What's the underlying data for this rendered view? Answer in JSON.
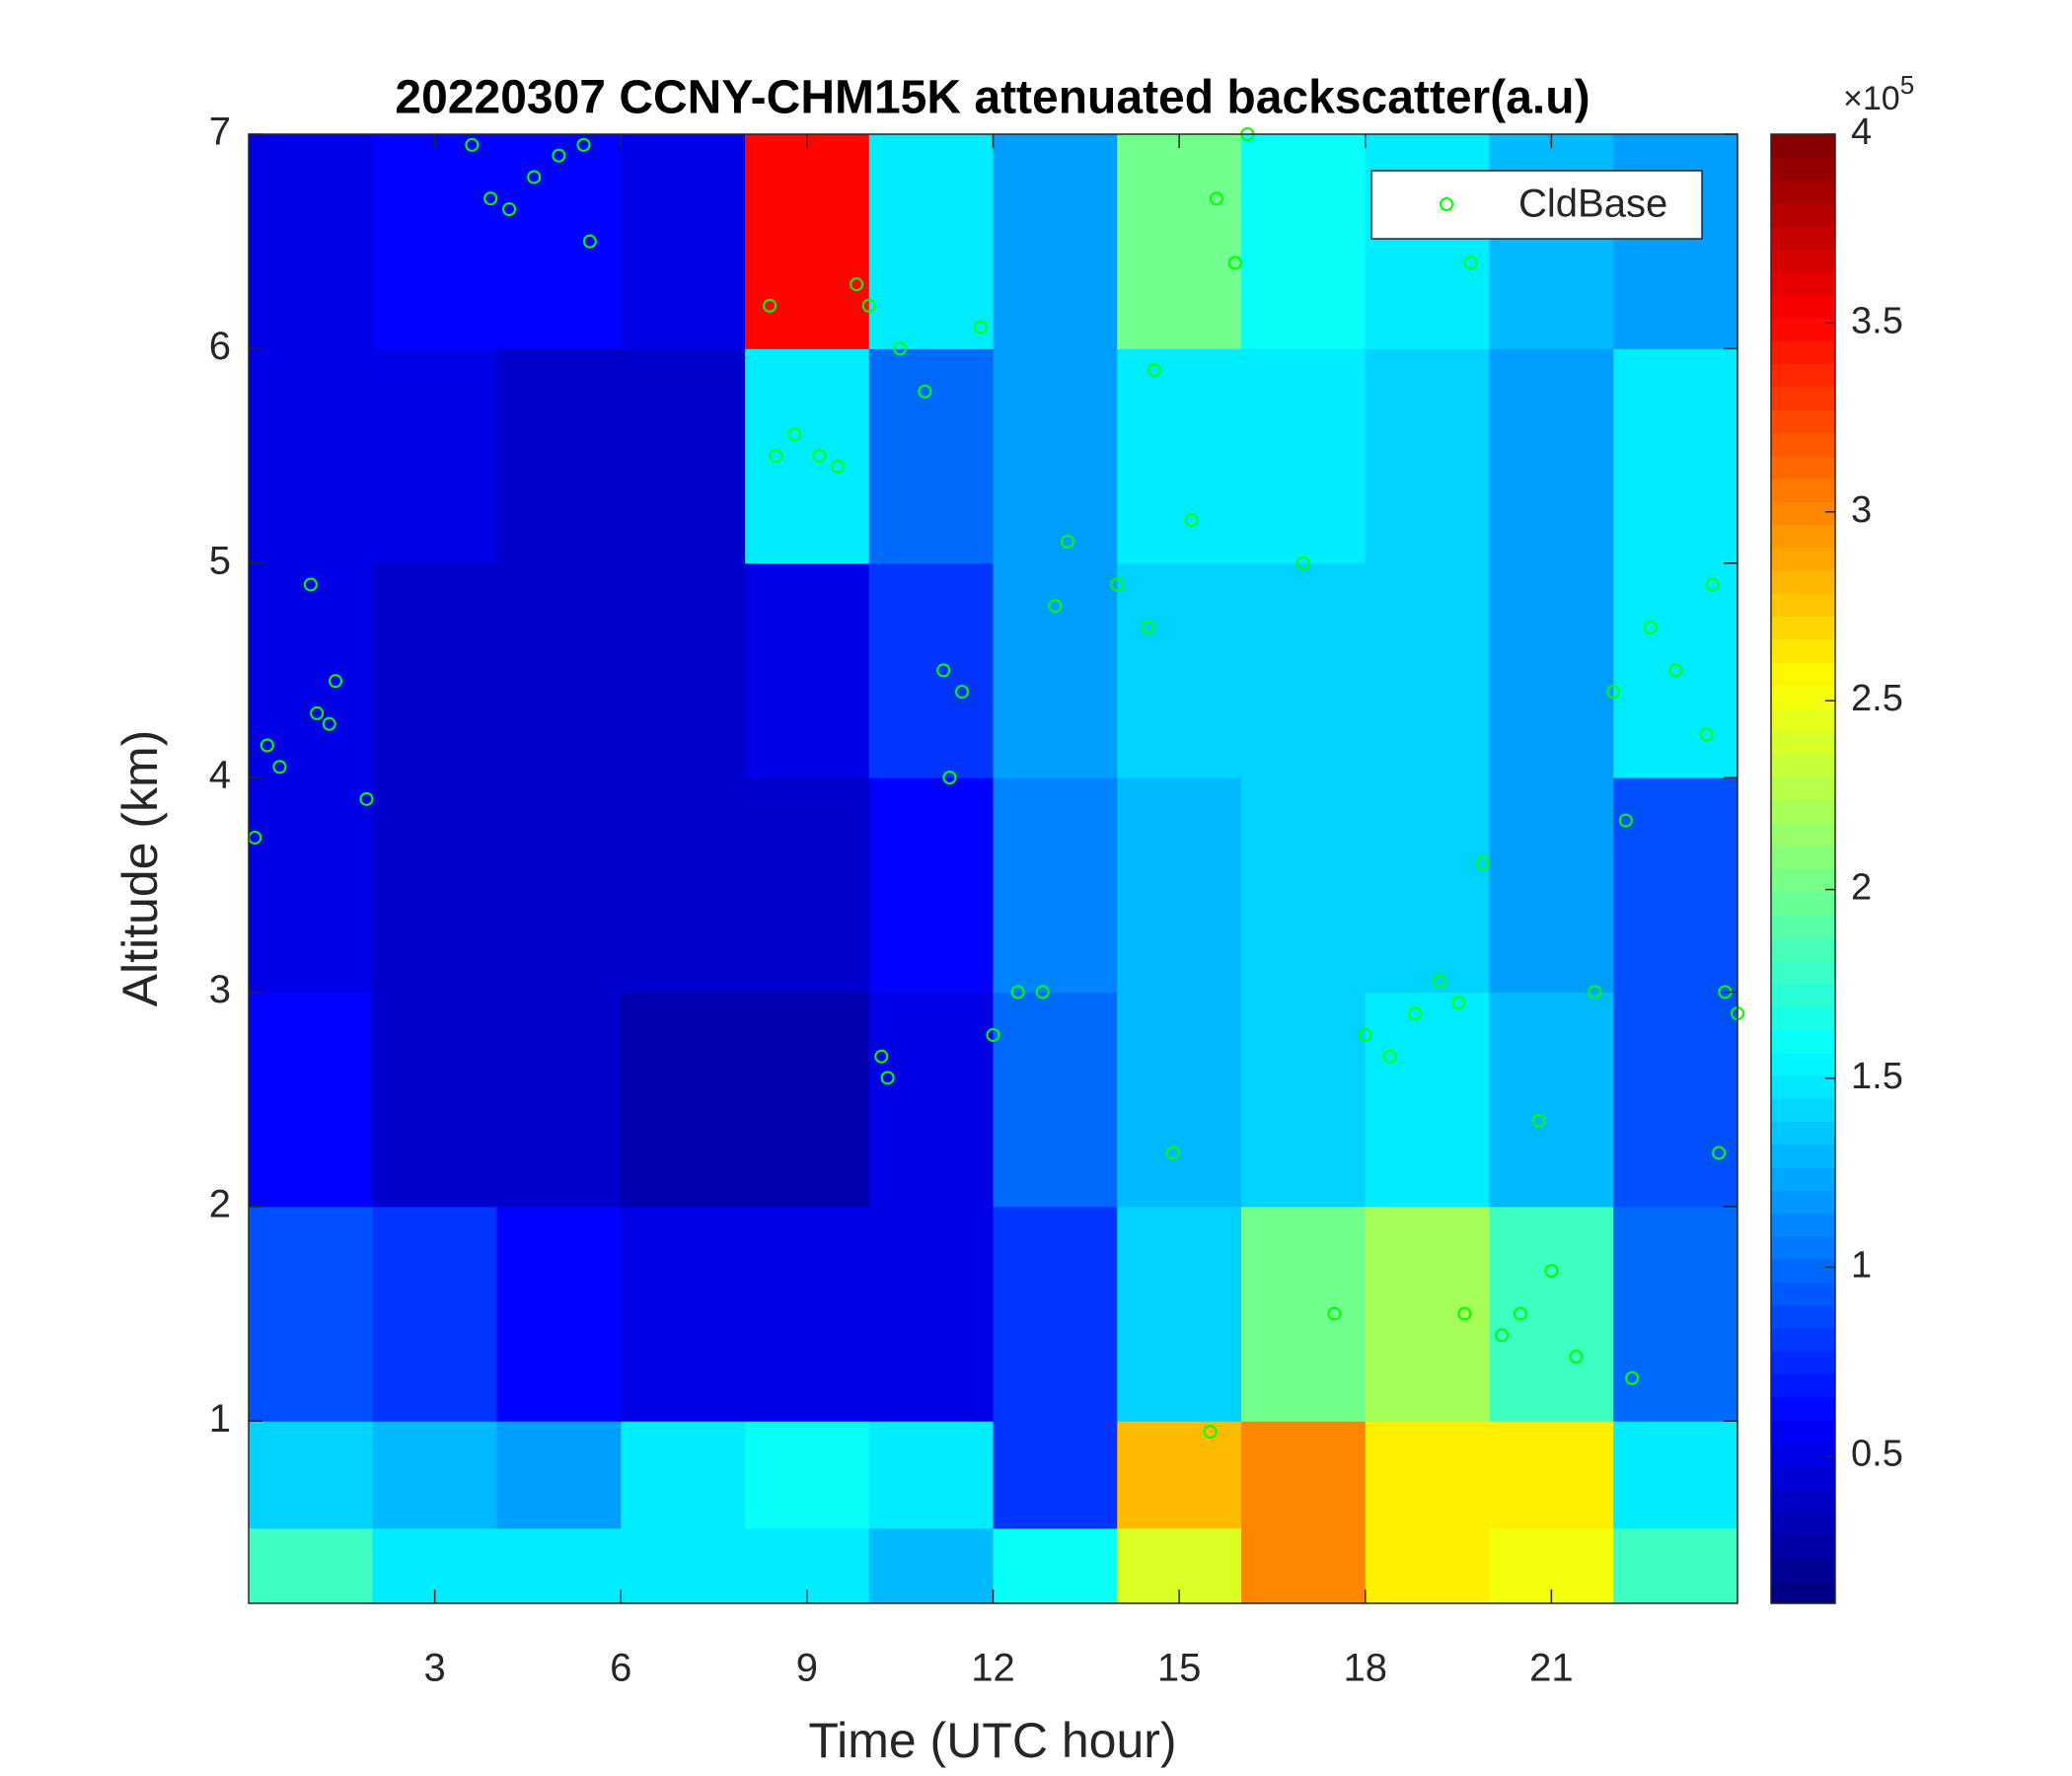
{
  "chart_data": {
    "type": "heatmap",
    "title": "20220307 CCNY-CHM15K attenuated backscatter(a.u)",
    "x_label": "Time (UTC hour)",
    "y_label": "Altitude (km)",
    "xlim": [
      0,
      24
    ],
    "xticks": [
      3,
      6,
      9,
      12,
      15,
      18,
      21
    ],
    "ylim": [
      0.15,
      7
    ],
    "yticks": [
      1,
      2,
      3,
      4,
      5,
      6,
      7
    ],
    "x_bins": [
      0,
      2,
      4,
      6,
      8,
      10,
      12,
      14,
      16,
      18,
      20,
      22,
      24
    ],
    "y_bins": [
      0.15,
      0.5,
      1,
      2,
      3,
      4,
      5,
      6,
      7
    ],
    "z": [
      [
        1.8,
        1.5,
        1.5,
        1.5,
        1.5,
        1.3,
        1.6,
        2.4,
        3.0,
        2.6,
        2.5,
        1.8
      ],
      [
        1.4,
        1.3,
        1.2,
        1.5,
        1.6,
        1.5,
        0.8,
        2.8,
        3.0,
        2.6,
        2.6,
        1.5
      ],
      [
        0.9,
        0.8,
        0.6,
        0.5,
        0.5,
        0.5,
        0.8,
        1.4,
        2.0,
        2.2,
        1.8,
        1.0
      ],
      [
        0.6,
        0.4,
        0.4,
        0.3,
        0.3,
        0.5,
        1.0,
        1.3,
        1.4,
        1.5,
        1.3,
        0.9
      ],
      [
        0.5,
        0.4,
        0.4,
        0.4,
        0.4,
        0.6,
        1.1,
        1.3,
        1.4,
        1.4,
        1.2,
        0.9
      ],
      [
        0.5,
        0.4,
        0.4,
        0.4,
        0.5,
        0.8,
        1.2,
        1.4,
        1.4,
        1.4,
        1.2,
        1.5
      ],
      [
        0.5,
        0.5,
        0.4,
        0.4,
        1.5,
        1.0,
        1.2,
        1.5,
        1.5,
        1.4,
        1.2,
        1.5
      ],
      [
        0.5,
        0.6,
        0.6,
        0.5,
        3.5,
        1.5,
        1.2,
        2.0,
        1.6,
        1.5,
        1.3,
        1.2
      ]
    ],
    "colormap": "jet",
    "clim": [
      0.11,
      4
    ],
    "cticks": [
      0.5,
      1,
      1.5,
      2,
      2.5,
      3,
      3.5,
      4
    ],
    "colorbar_multiplier": "×10",
    "colorbar_exponent": "5",
    "legend": "upper right",
    "series": [
      {
        "name": "CldBase",
        "type": "scatter",
        "color": "#00ff00",
        "x": [
          0.1,
          0.3,
          0.5,
          1.0,
          1.1,
          1.3,
          1.4,
          1.9,
          3.6,
          3.9,
          4.2,
          4.6,
          5.0,
          5.4,
          5.5,
          8.4,
          8.5,
          8.8,
          9.2,
          9.5,
          9.8,
          10.0,
          10.2,
          10.3,
          10.5,
          10.9,
          11.2,
          11.3,
          11.5,
          11.8,
          12.0,
          12.4,
          12.8,
          13.0,
          13.2,
          14.0,
          14.5,
          14.6,
          14.9,
          15.2,
          15.5,
          15.6,
          15.9,
          16.1,
          17.0,
          17.5,
          18.0,
          18.4,
          18.8,
          19.2,
          19.5,
          19.6,
          19.7,
          19.9,
          20.2,
          20.5,
          20.8,
          21.0,
          21.4,
          21.7,
          22.0,
          22.2,
          22.3,
          22.6,
          23.0,
          23.5,
          23.6,
          23.7,
          23.8,
          24.0
        ],
        "values": [
          3.72,
          4.15,
          4.05,
          4.9,
          4.3,
          4.25,
          4.45,
          3.9,
          6.95,
          6.7,
          6.65,
          6.8,
          6.9,
          6.95,
          6.5,
          6.2,
          5.5,
          5.6,
          5.5,
          5.45,
          6.3,
          6.2,
          2.7,
          2.6,
          6.0,
          5.8,
          4.5,
          4.0,
          4.4,
          6.1,
          2.8,
          3.0,
          3.0,
          4.8,
          5.1,
          4.9,
          4.7,
          5.9,
          2.25,
          5.2,
          0.95,
          6.7,
          6.4,
          7.0,
          5.0,
          1.5,
          2.8,
          2.7,
          2.9,
          3.05,
          2.95,
          1.5,
          6.4,
          3.6,
          1.4,
          1.5,
          2.4,
          1.7,
          1.3,
          3.0,
          4.4,
          3.8,
          1.2,
          4.7,
          4.5,
          4.2,
          4.9,
          2.25,
          3.0,
          2.9
        ]
      }
    ]
  }
}
